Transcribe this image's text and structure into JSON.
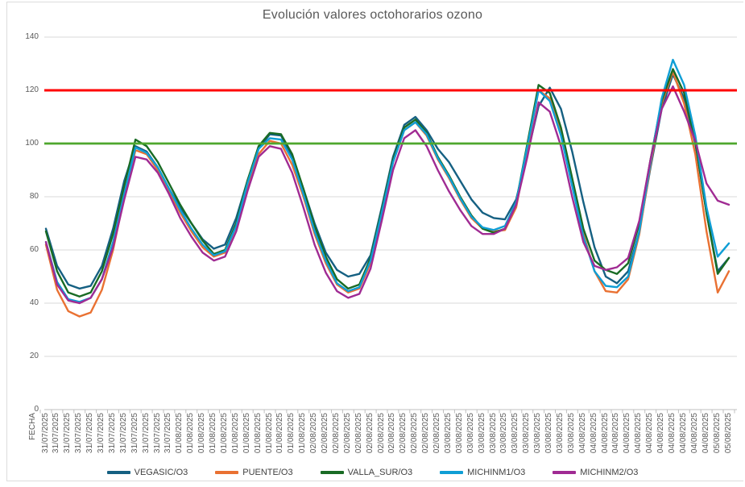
{
  "chart_data": {
    "type": "line",
    "title": "Evolución valores octohorarios ozono",
    "x_axis_title": "FECHA",
    "legend_position": "bottom",
    "grid": true,
    "y_axis": {
      "min": 0,
      "max": 140,
      "tick_interval": 20,
      "tick_labels": [
        "0",
        "20",
        "40",
        "60",
        "80",
        "100",
        "120",
        "140"
      ]
    },
    "categories": [
      "31/07/2025",
      "31/07/2025",
      "31/07/2025",
      "31/07/2025",
      "31/07/2025",
      "31/07/2025",
      "31/07/2025",
      "31/07/2025",
      "31/07/2025",
      "31/07/2025",
      "31/07/2025",
      "31/07/2025",
      "01/08/2025",
      "01/08/2025",
      "01/08/2025",
      "01/08/2025",
      "01/08/2025",
      "01/08/2025",
      "01/08/2025",
      "01/08/2025",
      "01/08/2025",
      "01/08/2025",
      "01/08/2025",
      "01/08/2025",
      "02/08/2025",
      "02/08/2025",
      "02/08/2025",
      "02/08/2025",
      "02/08/2025",
      "02/08/2025",
      "02/08/2025",
      "02/08/2025",
      "02/08/2025",
      "02/08/2025",
      "02/08/2025",
      "02/08/2025",
      "03/08/2025",
      "03/08/2025",
      "03/08/2025",
      "03/08/2025",
      "03/08/2025",
      "03/08/2025",
      "03/08/2025",
      "03/08/2025",
      "03/08/2025",
      "03/08/2025",
      "03/08/2025",
      "03/08/2025",
      "04/08/2025",
      "04/08/2025",
      "04/08/2025",
      "04/08/2025",
      "04/08/2025",
      "04/08/2025",
      "04/08/2025",
      "04/08/2025",
      "04/08/2025",
      "04/08/2025",
      "04/08/2025",
      "04/08/2025",
      "05/08/2025",
      "05/08/2025"
    ],
    "series": [
      {
        "name": "VEGASIC/O3",
        "color": "#156082",
        "values": [
          68,
          54,
          47,
          45.5,
          46.5,
          54,
          68,
          86,
          99,
          97,
          91,
          83,
          76,
          70,
          64,
          60.5,
          62,
          72,
          86,
          98,
          103.5,
          103,
          95,
          83,
          70,
          59,
          52.5,
          50,
          51,
          58,
          76,
          95,
          107,
          110,
          105,
          98,
          93,
          86,
          79,
          74,
          72,
          71.5,
          79,
          96,
          114,
          121,
          113,
          97,
          78,
          61,
          50,
          47.5,
          52,
          67,
          91,
          113,
          126,
          117,
          100,
          74,
          52,
          57
        ]
      },
      {
        "name": "PUENTE/O3",
        "color": "#E97132",
        "values": [
          62,
          45,
          37,
          35,
          36.5,
          45,
          60,
          80,
          97.5,
          96,
          90,
          82,
          74,
          67,
          61,
          57.5,
          59,
          69,
          84,
          96,
          101,
          100,
          92,
          80,
          66,
          55,
          47,
          44,
          45.5,
          55,
          73,
          93,
          105,
          108,
          103,
          94,
          87,
          79,
          72,
          68,
          67,
          67.5,
          76,
          98,
          120,
          117,
          104,
          85,
          66,
          52,
          44.5,
          44,
          49,
          66,
          92,
          115,
          127,
          115,
          96,
          67,
          44,
          52
        ]
      },
      {
        "name": "VALLA_SUR/O3",
        "color": "#196B24",
        "values": [
          67,
          52,
          44,
          42.5,
          44,
          52,
          66,
          84,
          101.5,
          99,
          93,
          85,
          77,
          70,
          63.5,
          58.5,
          60,
          70,
          86,
          99,
          104,
          103.5,
          96,
          83,
          69,
          57.5,
          49,
          45.5,
          47,
          57,
          75,
          94,
          106,
          109,
          104,
          95,
          88,
          80,
          73,
          68,
          66.5,
          68,
          78,
          100,
          122,
          119,
          106,
          87,
          68,
          56,
          52.5,
          51,
          55,
          70,
          94,
          116,
          128,
          119,
          101,
          74,
          51,
          57
        ]
      },
      {
        "name": "MICHINM1/O3",
        "color": "#0F9ED5",
        "values": [
          63,
          48,
          41.5,
          40.5,
          42,
          49,
          63,
          81,
          98.5,
          96.5,
          91,
          83,
          75,
          68,
          62,
          58,
          59.5,
          69,
          85,
          98,
          102,
          101.5,
          94,
          81,
          67,
          56,
          47.5,
          44.5,
          46,
          56,
          74,
          93,
          105,
          108,
          103.5,
          94.5,
          87.5,
          79.5,
          72.5,
          68.5,
          67.5,
          69,
          78,
          99,
          120,
          116,
          103,
          84,
          65,
          52,
          46.5,
          46,
          50,
          67,
          93,
          117,
          131.5,
          122,
          103,
          76,
          57.5,
          62.5
        ]
      },
      {
        "name": "MICHINM2/O3",
        "color": "#A02B93",
        "values": [
          63,
          47,
          41,
          40,
          42,
          49,
          61,
          79,
          95,
          94,
          89,
          81,
          72,
          65,
          59,
          56,
          57.5,
          67,
          82,
          95,
          99,
          98,
          89,
          76,
          62,
          51.5,
          44.5,
          42,
          43.5,
          53,
          71,
          90,
          102,
          105,
          99,
          90,
          82,
          75,
          69,
          66,
          66,
          68,
          77,
          95,
          115.5,
          112,
          99,
          80,
          63,
          54,
          52.5,
          53.5,
          57,
          71,
          94,
          113,
          121.5,
          112,
          101,
          85,
          78.5,
          77
        ]
      }
    ],
    "reference_lines": [
      {
        "value": 120,
        "color": "#FF0000"
      },
      {
        "value": 100,
        "color": "#4EA72E"
      }
    ]
  },
  "colors": {
    "gridline": "#D9D9D9",
    "axis_line": "#BFBFBF",
    "tick_label": "#595959",
    "title_text": "#595959",
    "legend_text": "#404040",
    "background": "#FFFFFF",
    "figure_border": "#DCDCDC"
  }
}
